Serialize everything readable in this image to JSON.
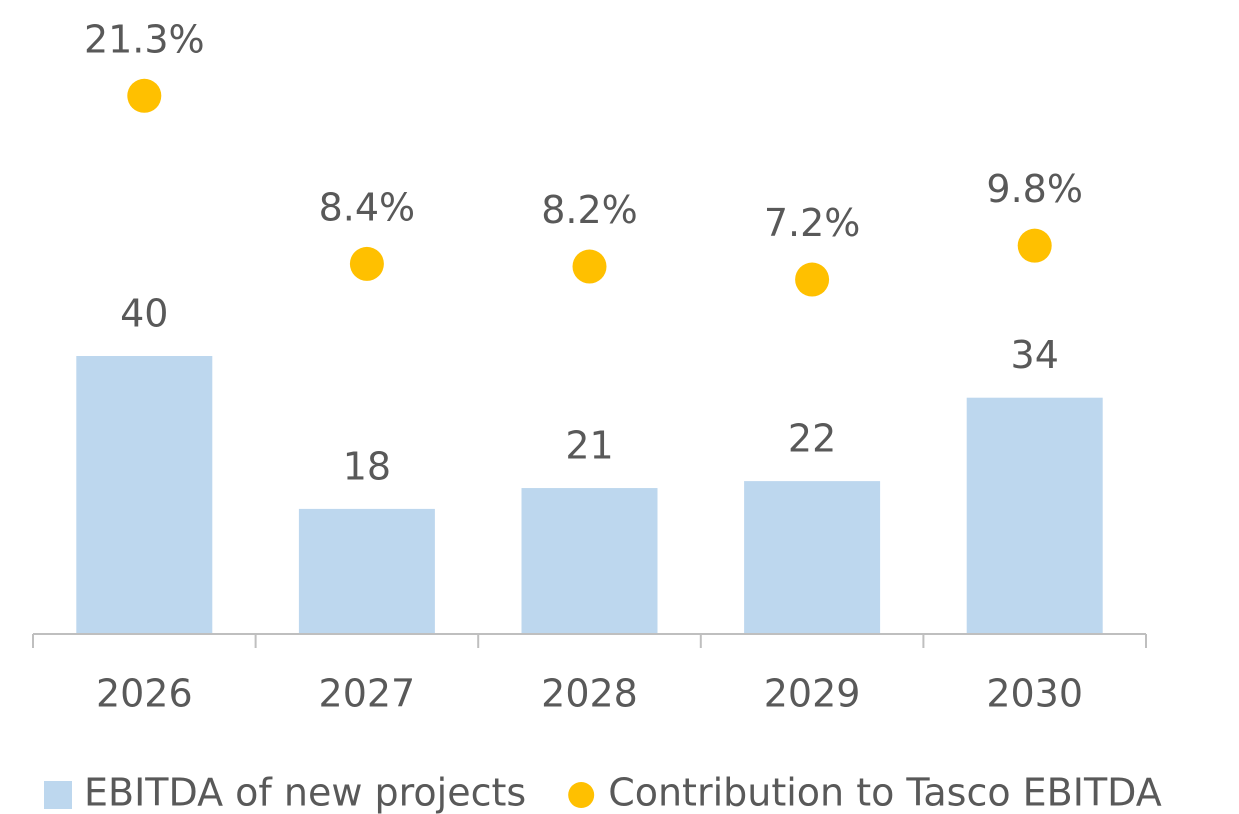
{
  "chart_data": {
    "type": "bar",
    "categories": [
      "2026",
      "2027",
      "2028",
      "2029",
      "2030"
    ],
    "ylim": [
      0,
      90
    ],
    "y2lim": [
      -20,
      28
    ],
    "series": [
      {
        "name": "EBITDA of new projects",
        "type": "bar",
        "color": "#bdd7ee",
        "values": [
          40,
          18,
          21,
          22,
          34
        ]
      },
      {
        "name": "Contribution to Tasco EBITDA",
        "type": "scatter",
        "axis": "y2",
        "color": "#ffc000",
        "values": [
          21.3,
          8.4,
          8.2,
          7.2,
          9.8
        ],
        "value_labels": [
          "21.3%",
          "8.4%",
          "8.2%",
          "7.2%",
          "9.8%"
        ]
      }
    ]
  }
}
